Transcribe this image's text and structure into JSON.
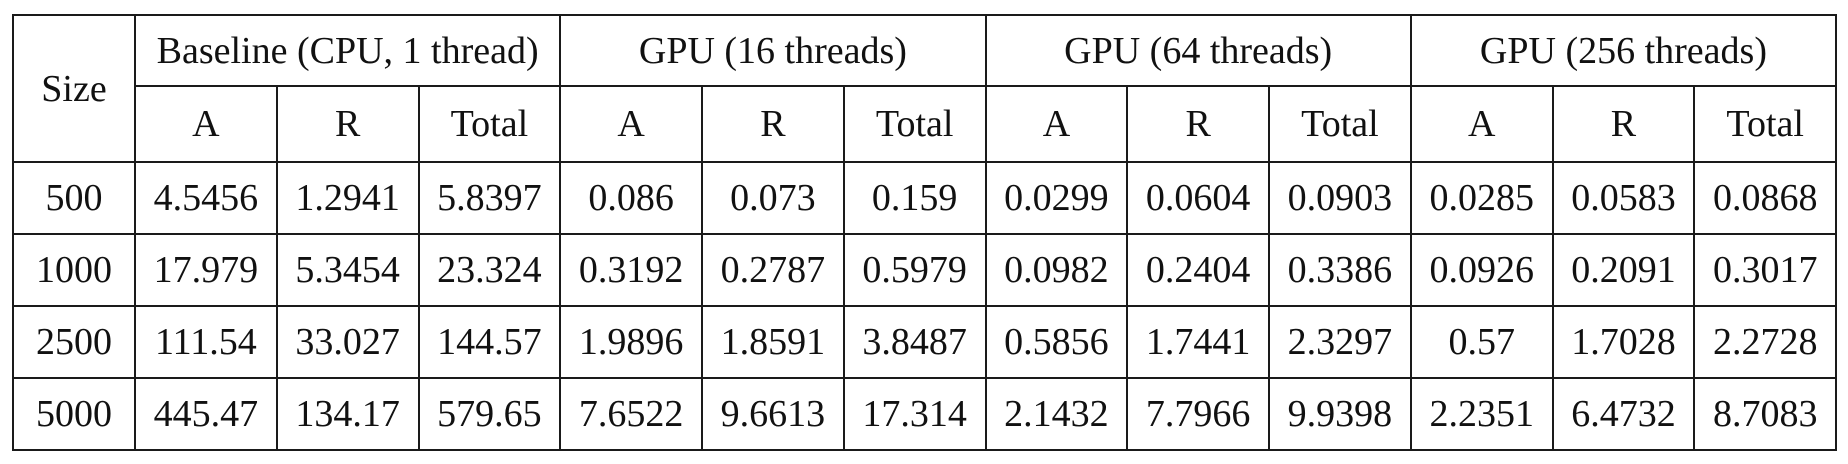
{
  "table": {
    "size_header": "Size",
    "groups": [
      {
        "label": "Baseline (CPU, 1 thread)",
        "columns": [
          "A",
          "R",
          "Total"
        ]
      },
      {
        "label": "GPU (16 threads)",
        "columns": [
          "A",
          "R",
          "Total"
        ]
      },
      {
        "label": "GPU (64 threads)",
        "columns": [
          "A",
          "R",
          "Total"
        ]
      },
      {
        "label": "GPU (256 threads)",
        "columns": [
          "A",
          "R",
          "Total"
        ]
      }
    ],
    "rows": [
      {
        "size": "500",
        "values": [
          "4.5456",
          "1.2941",
          "5.8397",
          "0.086",
          "0.073",
          "0.159",
          "0.0299",
          "0.0604",
          "0.0903",
          "0.0285",
          "0.0583",
          "0.0868"
        ]
      },
      {
        "size": "1000",
        "values": [
          "17.979",
          "5.3454",
          "23.324",
          "0.3192",
          "0.2787",
          "0.5979",
          "0.0982",
          "0.2404",
          "0.3386",
          "0.0926",
          "0.2091",
          "0.3017"
        ]
      },
      {
        "size": "2500",
        "values": [
          "111.54",
          "33.027",
          "144.57",
          "1.9896",
          "1.8591",
          "3.8487",
          "0.5856",
          "1.7441",
          "2.3297",
          "0.57",
          "1.7028",
          "2.2728"
        ]
      },
      {
        "size": "5000",
        "values": [
          "445.47",
          "134.17",
          "579.65",
          "7.6522",
          "9.6613",
          "17.314",
          "2.1432",
          "7.7966",
          "9.9398",
          "2.2351",
          "6.4732",
          "8.7083"
        ]
      }
    ]
  }
}
